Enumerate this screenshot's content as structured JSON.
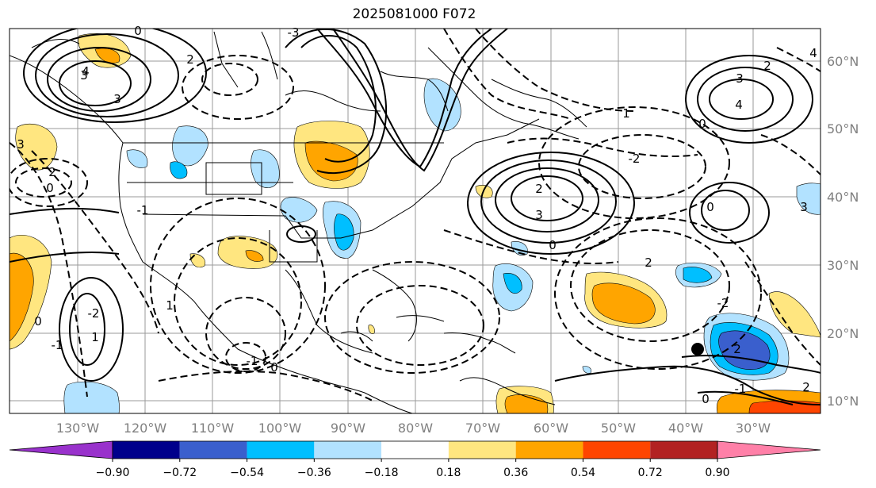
{
  "title": "2025081000 F072",
  "map": {
    "lon_labels": [
      "130°W",
      "120°W",
      "110°W",
      "100°W",
      "90°W",
      "80°W",
      "70°W",
      "60°W",
      "50°W",
      "40°W",
      "30°W"
    ],
    "lat_labels": [
      "60°N",
      "50°N",
      "40°N",
      "30°N",
      "20°N",
      "10°N"
    ],
    "contour_labels": [
      "0",
      "3",
      "4",
      "3",
      "2",
      "3",
      "0",
      "-1",
      "-3",
      "2",
      "3",
      "4",
      "2",
      "0",
      "3",
      "2",
      "1",
      "0",
      "-2",
      "2",
      "-1",
      "0",
      "2",
      "-1",
      "0",
      "-2",
      "1",
      "0",
      "-1",
      "1",
      "0",
      "4",
      "3",
      "2",
      "-2"
    ]
  },
  "colorbar": {
    "ticks": [
      "−0.90",
      "−0.72",
      "−0.54",
      "−0.36",
      "−0.18",
      "0.18",
      "0.36",
      "0.54",
      "0.72",
      "0.90"
    ],
    "colors": [
      "#9932cc",
      "#00008b",
      "#3a5fcd",
      "#00bfff",
      "#b2e2ff",
      "#ffffff",
      "#ffe680",
      "#ffa500",
      "#ff4500",
      "#b22222",
      "#ff80a8"
    ]
  }
}
